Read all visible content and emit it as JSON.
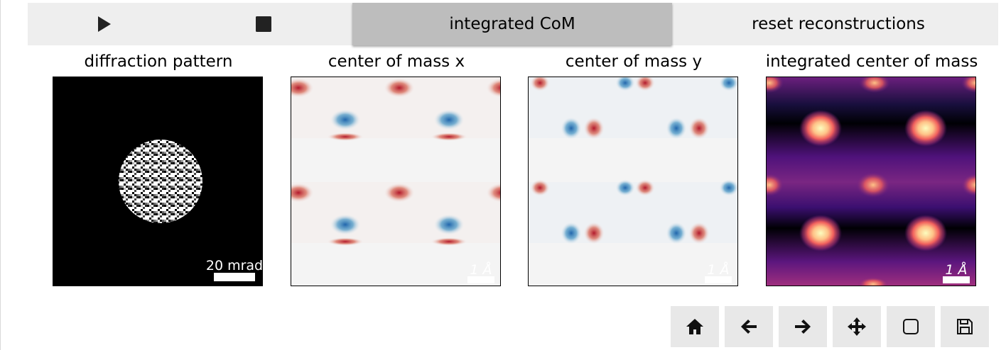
{
  "toolbar": {
    "play_icon": "play-icon",
    "stop_icon": "stop-icon",
    "integrated_label": "integrated CoM",
    "reset_label": "reset reconstructions"
  },
  "panels": [
    {
      "title": "diffraction pattern",
      "scalebar": "20 mrad"
    },
    {
      "title": "center of mass x",
      "scalebar": "1 Å"
    },
    {
      "title": "center of mass y",
      "scalebar": "1 Å"
    },
    {
      "title": "integrated center of mass",
      "scalebar": "1 Å"
    }
  ],
  "nav": [
    "home-icon",
    "back-icon",
    "forward-icon",
    "pan-icon",
    "zoom-icon",
    "save-icon"
  ],
  "colors": {
    "toolbar_bg": "#eeeeee",
    "active_button": "#bdbdbd",
    "diverging_red": "#b2182b",
    "diverging_blue": "#2166ac",
    "magma_bright": "#fcfdbf",
    "magma_mid": "#721f81"
  }
}
